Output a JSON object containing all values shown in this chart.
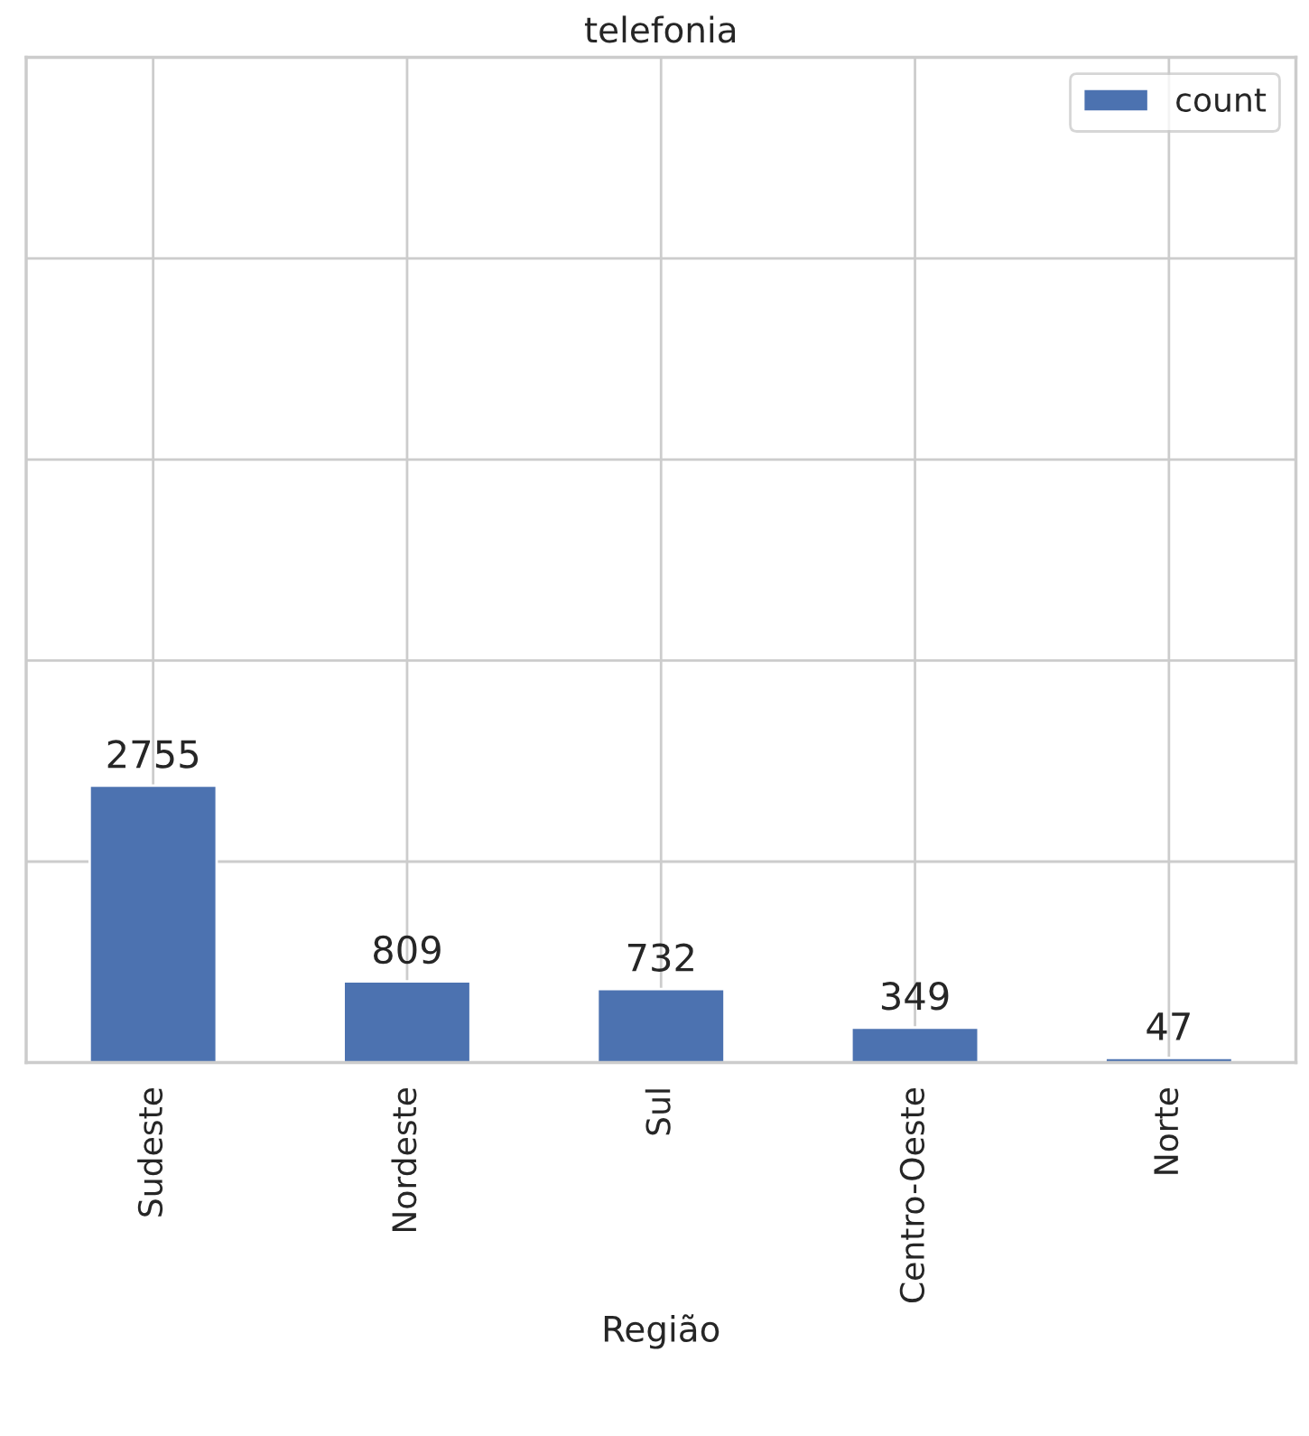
{
  "chart_data": {
    "type": "bar",
    "title": "telefonia",
    "xlabel": "Região",
    "categories": [
      "Sudeste",
      "Nordeste",
      "Sul",
      "Centro-Oeste",
      "Norte"
    ],
    "series": [
      {
        "name": "count",
        "color": "#4c72b0",
        "values": [
          2755,
          809,
          732,
          349,
          47
        ]
      }
    ],
    "ylim": [
      0,
      10000
    ],
    "yticks": [
      {
        "value": 0,
        "label": null
      },
      {
        "value": 2000,
        "label": null
      },
      {
        "value": 4000,
        "label": null
      },
      {
        "value": 6000,
        "label": null
      },
      {
        "value": 8000,
        "label": null
      },
      {
        "value": 10000,
        "label": null
      }
    ],
    "data_labels": true,
    "grid": true,
    "legend": "top right"
  }
}
